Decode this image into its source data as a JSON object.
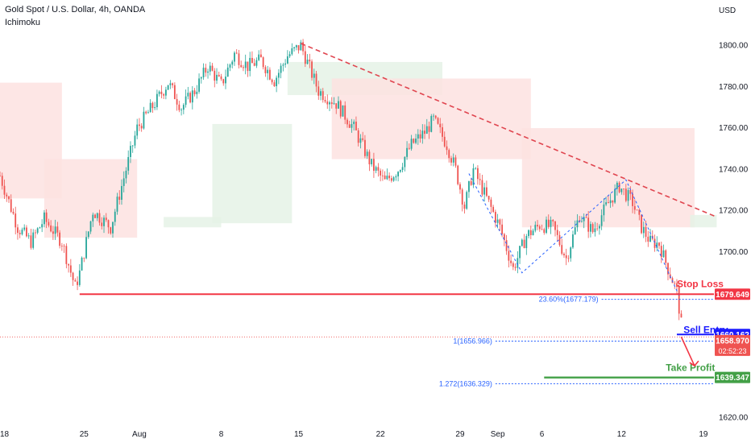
{
  "header": {
    "symbol_line": "Gold Spot / U.S. Dollar, 4h, OANDA",
    "indicator": "Ichimoku"
  },
  "colors": {
    "up": "#26a69a",
    "down": "#ef5350",
    "stop": "#f23645",
    "entry": "#1a1aff",
    "take_profit": "#43a047",
    "fib": "#2962ff",
    "trend": "#e0454f",
    "cloud_bear": "#fde2e1",
    "cloud_bull": "#e5f2e6"
  },
  "chart_data": {
    "type": "candlestick",
    "currency_label": "USD",
    "ylim": [
      1617,
      1822
    ],
    "y_ticks": [
      1800,
      1780,
      1760,
      1740,
      1720,
      1700,
      1620
    ],
    "x_ticks": [
      {
        "label": "18",
        "i": 2
      },
      {
        "label": "25",
        "i": 38
      },
      {
        "label": "Aug",
        "i": 63
      },
      {
        "label": "8",
        "i": 100
      },
      {
        "label": "15",
        "i": 135
      },
      {
        "label": "22",
        "i": 172
      },
      {
        "label": "29",
        "i": 208
      },
      {
        "label": "Sep",
        "i": 225
      },
      {
        "label": "6",
        "i": 245
      },
      {
        "label": "12",
        "i": 281
      },
      {
        "label": "19",
        "i": 318
      }
    ],
    "price_anchors": [
      [
        0,
        1737
      ],
      [
        8,
        1712
      ],
      [
        14,
        1705
      ],
      [
        20,
        1716
      ],
      [
        28,
        1705
      ],
      [
        34,
        1683
      ],
      [
        36,
        1690
      ],
      [
        42,
        1720
      ],
      [
        50,
        1712
      ],
      [
        56,
        1736
      ],
      [
        62,
        1760
      ],
      [
        70,
        1772
      ],
      [
        76,
        1782
      ],
      [
        82,
        1770
      ],
      [
        88,
        1778
      ],
      [
        94,
        1790
      ],
      [
        100,
        1781
      ],
      [
        106,
        1796
      ],
      [
        112,
        1790
      ],
      [
        118,
        1793
      ],
      [
        124,
        1783
      ],
      [
        130,
        1795
      ],
      [
        136,
        1800
      ],
      [
        144,
        1778
      ],
      [
        152,
        1772
      ],
      [
        160,
        1760
      ],
      [
        168,
        1742
      ],
      [
        174,
        1734
      ],
      [
        180,
        1740
      ],
      [
        186,
        1752
      ],
      [
        192,
        1758
      ],
      [
        196,
        1764
      ],
      [
        202,
        1752
      ],
      [
        206,
        1740
      ],
      [
        210,
        1722
      ],
      [
        214,
        1740
      ],
      [
        220,
        1726
      ],
      [
        226,
        1712
      ],
      [
        232,
        1692
      ],
      [
        238,
        1708
      ],
      [
        244,
        1713
      ],
      [
        250,
        1712
      ],
      [
        256,
        1697
      ],
      [
        262,
        1718
      ],
      [
        268,
        1710
      ],
      [
        274,
        1722
      ],
      [
        280,
        1732
      ],
      [
        286,
        1724
      ],
      [
        290,
        1712
      ],
      [
        294,
        1705
      ],
      [
        298,
        1704
      ],
      [
        302,
        1692
      ],
      [
        306,
        1681
      ],
      [
        308,
        1665
      ]
    ],
    "ichimoku_cloud": [
      {
        "from": 0,
        "to": 28,
        "top": 1782,
        "bottom": 1726,
        "kind": "bear"
      },
      {
        "from": 20,
        "to": 62,
        "top": 1745,
        "bottom": 1707,
        "kind": "bear"
      },
      {
        "from": 74,
        "to": 100,
        "top": 1717,
        "bottom": 1712,
        "kind": "bull"
      },
      {
        "from": 96,
        "to": 132,
        "top": 1762,
        "bottom": 1714,
        "kind": "bull"
      },
      {
        "from": 130,
        "to": 200,
        "top": 1792,
        "bottom": 1776,
        "kind": "bull"
      },
      {
        "from": 150,
        "to": 240,
        "top": 1784,
        "bottom": 1745,
        "kind": "bear"
      },
      {
        "from": 236,
        "to": 314,
        "top": 1760,
        "bottom": 1712,
        "kind": "bear"
      },
      {
        "from": 312,
        "to": 324,
        "top": 1718,
        "bottom": 1712,
        "kind": "bull"
      }
    ],
    "trendline": [
      [
        136,
        1801
      ],
      [
        324,
        1717
      ]
    ],
    "zigzag": [
      [
        212,
        1738
      ],
      [
        236,
        1690
      ],
      [
        283,
        1735
      ],
      [
        307,
        1679
      ]
    ],
    "levels": {
      "stop_loss": {
        "label": "Stop Loss",
        "value": 1679.649,
        "badge": "1679.649",
        "from": 36
      },
      "sell_entry": {
        "label": "Sell Entry",
        "value": 1660.162,
        "badge": "1660.162",
        "from": 306
      },
      "take_profit": {
        "label": "Take Profit",
        "value": 1639.347,
        "badge": "1639.347",
        "from": 246
      },
      "current": {
        "value": 1658.97,
        "badge": "1658.970",
        "countdown": "02:52:23"
      }
    },
    "fib_levels": [
      {
        "label": "23.60%(1677.179)",
        "value": 1677.179,
        "from": 272
      },
      {
        "label": "1(1656.966)",
        "value": 1656.966,
        "from": 224
      },
      {
        "label": "1.272(1636.329)",
        "value": 1636.329,
        "from": 224
      }
    ],
    "arrow": {
      "from": [
        308,
        1659
      ],
      "to": [
        314,
        1645
      ]
    }
  }
}
